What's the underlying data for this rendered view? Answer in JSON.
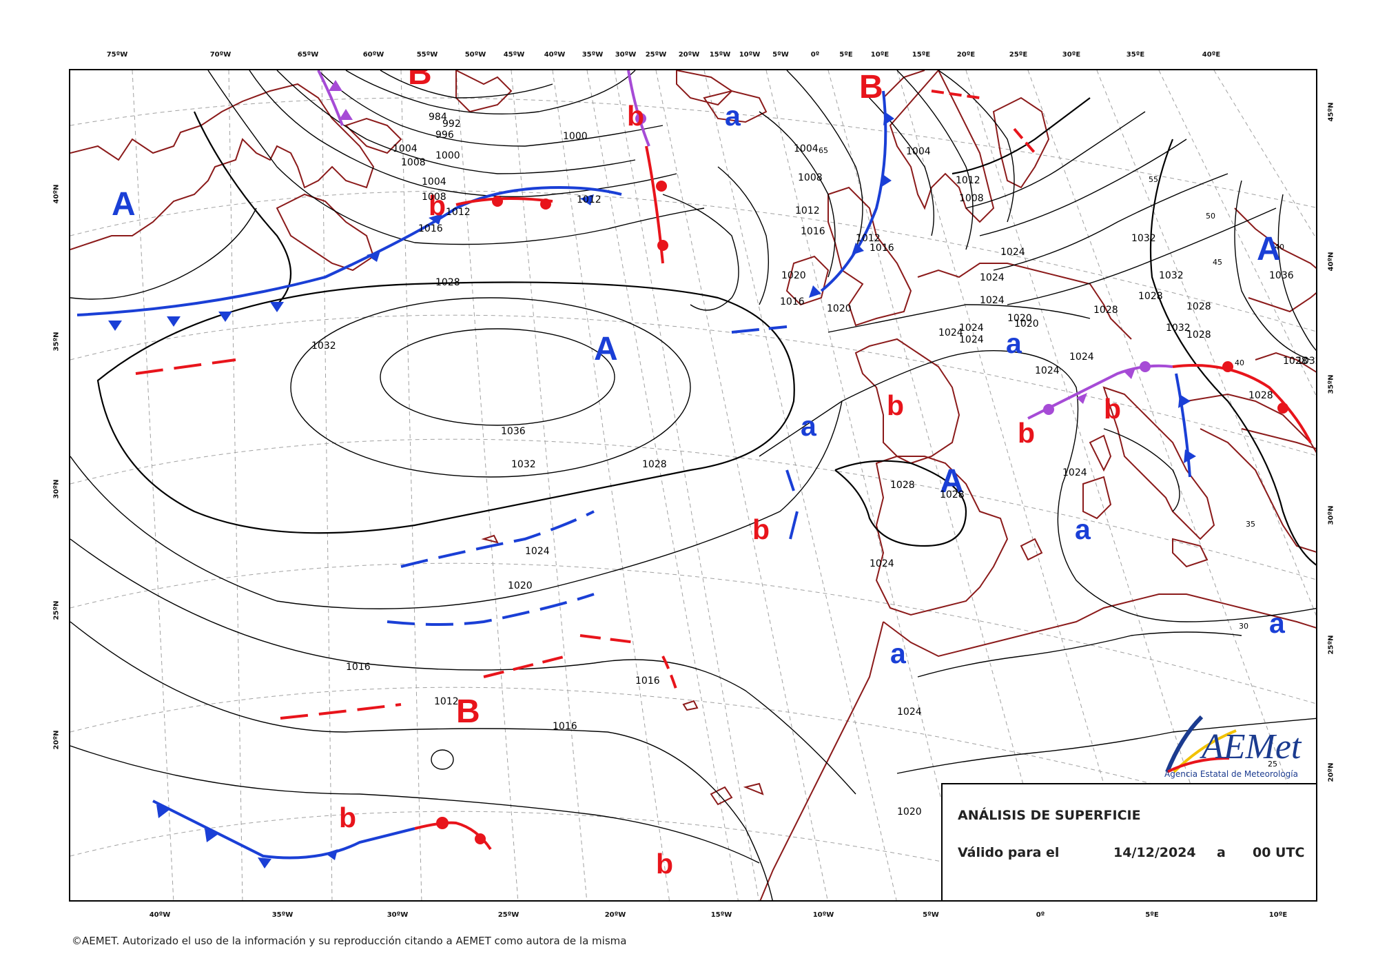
{
  "header": {
    "top_lon_labels": [
      "75ºW",
      "70ºW",
      "65ºW",
      "60ºW",
      "55ºW",
      "50ºW",
      "45ºW",
      "40ºW",
      "35ºW",
      "30ºW",
      "25ºW",
      "20ºW",
      "15ºW",
      "10ºW",
      "5ºW",
      "0º",
      "5ºE",
      "10ºE",
      "15ºE",
      "20ºE",
      "25ºE",
      "30ºE",
      "35ºE",
      "40ºE"
    ],
    "bottom_lon_labels": [
      "40ºW",
      "35ºW",
      "30ºW",
      "25ºW",
      "20ºW",
      "15ºW",
      "10ºW",
      "5ºW",
      "0º",
      "5ºE",
      "10ºE"
    ],
    "left_lat_labels": [
      "40ºN",
      "35ºN",
      "30ºN",
      "25ºN",
      "20ºN"
    ],
    "right_lat_labels": [
      "45ºN",
      "40ºN",
      "35ºN",
      "30ºN",
      "25ºN",
      "20ºN"
    ]
  },
  "centers": [
    {
      "type": "A",
      "label": "A",
      "color": "#1a3fd6"
    },
    {
      "type": "A",
      "label": "A",
      "color": "#1a3fd6"
    },
    {
      "type": "A",
      "label": "A",
      "color": "#1a3fd6"
    },
    {
      "type": "A",
      "label": "A",
      "color": "#1a3fd6"
    },
    {
      "type": "B",
      "label": "B",
      "color": "#e8141b"
    },
    {
      "type": "B",
      "label": "B",
      "color": "#e8141b"
    },
    {
      "type": "B",
      "label": "B",
      "color": "#e8141b"
    },
    {
      "type": "b",
      "label": "b",
      "color": "#e8141b"
    },
    {
      "type": "b",
      "label": "b",
      "color": "#e8141b"
    },
    {
      "type": "b",
      "label": "b",
      "color": "#e8141b"
    },
    {
      "type": "b",
      "label": "b",
      "color": "#e8141b"
    },
    {
      "type": "b",
      "label": "b",
      "color": "#e8141b"
    },
    {
      "type": "b",
      "label": "b",
      "color": "#e8141b"
    },
    {
      "type": "b",
      "label": "b",
      "color": "#e8141b"
    },
    {
      "type": "b",
      "label": "b",
      "color": "#e8141b"
    },
    {
      "type": "a",
      "label": "a",
      "color": "#1a3fd6"
    },
    {
      "type": "a",
      "label": "a",
      "color": "#1a3fd6"
    },
    {
      "type": "a",
      "label": "a",
      "color": "#1a3fd6"
    },
    {
      "type": "a",
      "label": "a",
      "color": "#1a3fd6"
    },
    {
      "type": "a",
      "label": "a",
      "color": "#1a3fd6"
    },
    {
      "type": "a",
      "label": "a",
      "color": "#1a3fd6"
    }
  ],
  "isobar_labels": [
    "1036",
    "1032",
    "1032",
    "1032",
    "1028",
    "1028",
    "1028",
    "1024",
    "1020",
    "1016",
    "1012",
    "1016",
    "1016",
    "1020",
    "1024",
    "1020",
    "1024",
    "1028",
    "1024",
    "1024",
    "1024",
    "1024",
    "1020",
    "1032",
    "1036",
    "1028",
    "1028",
    "1028",
    "1024",
    "1008",
    "1004",
    "1000",
    "996",
    "992",
    "984",
    "1004",
    "1008",
    "1012",
    "1016",
    "1012",
    "1000",
    "1004",
    "1008",
    "1012",
    "1016",
    "1016",
    "1020",
    "1024",
    "1032",
    "1028",
    "1028",
    "1012",
    "1004",
    "1008",
    "1012",
    "1016",
    "1020",
    "1024",
    "1024",
    "1024",
    "1028",
    "1032",
    "1028"
  ],
  "graticule_lat_labels": [
    "55",
    "50",
    "45",
    "40",
    "35",
    "30",
    "25",
    "40",
    "65"
  ],
  "info_box": {
    "title": "ANÁLISIS DE SUPERFICIE",
    "valid_label": "Válido para el",
    "date": "14/12/2024",
    "a": "a",
    "time": "00 UTC"
  },
  "logo": {
    "name": "AEMet",
    "subtitle": "Agencia Estatal de Meteorología"
  },
  "copyright": "©AEMET. Autorizado el uso de la información y su reproducción citando a AEMET como autora de la misma",
  "colors": {
    "cold_front": "#1a3fd6",
    "warm_front": "#e8141b",
    "occluded_front": "#a64bd6",
    "coast": "#8b1a1a",
    "isobar": "#000000",
    "grid": "#a0a0a0"
  }
}
